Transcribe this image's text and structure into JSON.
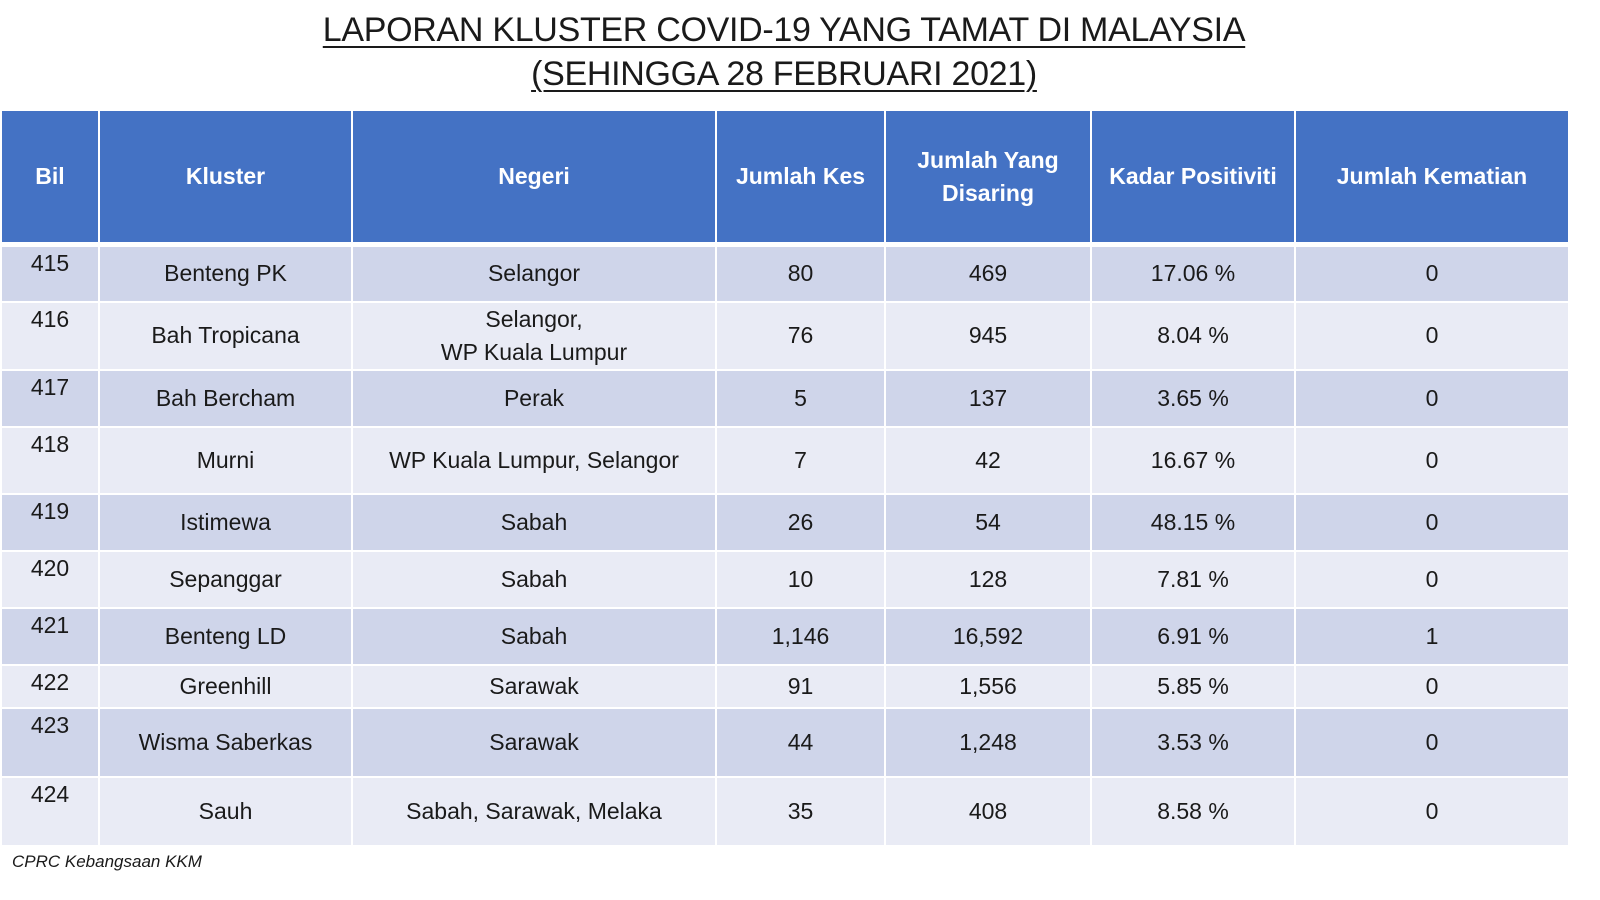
{
  "title": {
    "line1": "LAPORAN KLUSTER COVID-19 YANG TAMAT DI MALAYSIA",
    "line2": "(SEHINGGA 28 FEBRUARI 2021)"
  },
  "table": {
    "headers": {
      "bil": "Bil",
      "kluster": "Kluster",
      "negeri": "Negeri",
      "jumlah_kes": "Jumlah Kes",
      "jumlah_disaring_1": "Jumlah Yang",
      "jumlah_disaring_2": "Disaring",
      "kadar_positiviti": "Kadar Positiviti",
      "jumlah_kematian": "Jumlah Kematian"
    },
    "rows": [
      {
        "bil": "415",
        "kluster": "Benteng PK",
        "negeri": [
          "Selangor"
        ],
        "kes": "80",
        "disaring": "469",
        "positiviti": "17.06 %",
        "kematian": "0"
      },
      {
        "bil": "416",
        "kluster": "Bah Tropicana",
        "negeri": [
          "Selangor,",
          "WP Kuala Lumpur"
        ],
        "kes": "76",
        "disaring": "945",
        "positiviti": "8.04 %",
        "kematian": "0"
      },
      {
        "bil": "417",
        "kluster": "Bah Bercham",
        "negeri": [
          "Perak"
        ],
        "kes": "5",
        "disaring": "137",
        "positiviti": "3.65 %",
        "kematian": "0"
      },
      {
        "bil": "418",
        "kluster": "Murni",
        "negeri": [
          "WP Kuala Lumpur, Selangor"
        ],
        "kes": "7",
        "disaring": "42",
        "positiviti": "16.67 %",
        "kematian": "0"
      },
      {
        "bil": "419",
        "kluster": "Istimewa",
        "negeri": [
          "Sabah"
        ],
        "kes": "26",
        "disaring": "54",
        "positiviti": "48.15 %",
        "kematian": "0"
      },
      {
        "bil": "420",
        "kluster": "Sepanggar",
        "negeri": [
          "Sabah"
        ],
        "kes": "10",
        "disaring": "128",
        "positiviti": "7.81 %",
        "kematian": "0"
      },
      {
        "bil": "421",
        "kluster": "Benteng LD",
        "negeri": [
          "Sabah"
        ],
        "kes": "1,146",
        "disaring": "16,592",
        "positiviti": "6.91 %",
        "kematian": "1"
      },
      {
        "bil": "422",
        "kluster": "Greenhill",
        "negeri": [
          "Sarawak"
        ],
        "kes": "91",
        "disaring": "1,556",
        "positiviti": "5.85 %",
        "kematian": "0"
      },
      {
        "bil": "423",
        "kluster": "Wisma Saberkas",
        "negeri": [
          "Sarawak"
        ],
        "kes": "44",
        "disaring": "1,248",
        "positiviti": "3.53 %",
        "kematian": "0"
      },
      {
        "bil": "424",
        "kluster": "Sauh",
        "negeri": [
          "Sabah, Sarawak, Melaka"
        ],
        "kes": "35",
        "disaring": "408",
        "positiviti": "8.58 %",
        "kematian": "0"
      }
    ]
  },
  "source": "CPRC Kebangsaan KKM",
  "colors": {
    "header_bg": "#4472c4",
    "row_dark": "#cfd5ea",
    "row_light": "#e9ebf5"
  }
}
